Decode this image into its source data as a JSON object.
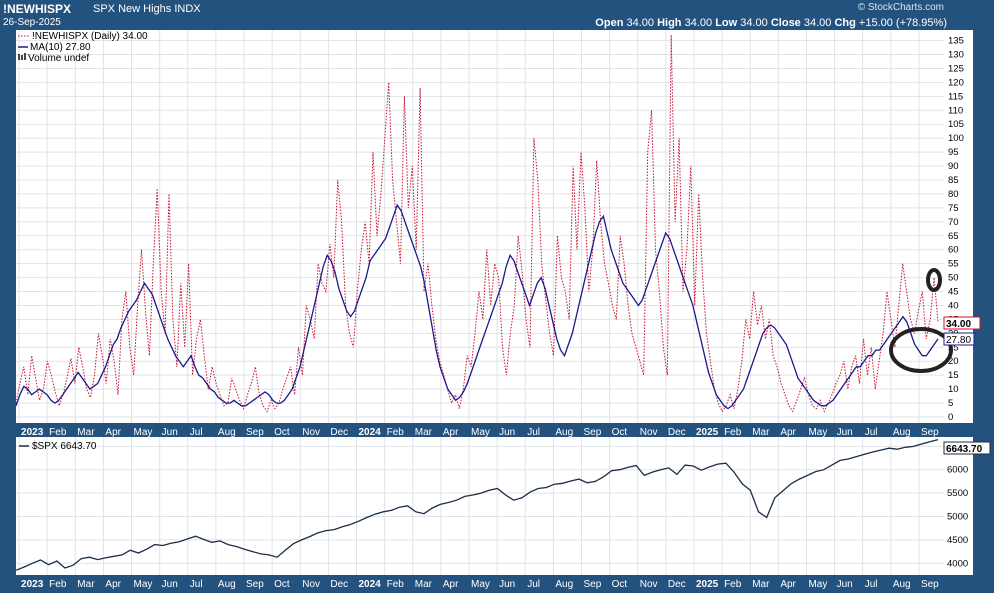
{
  "header": {
    "symbol": "!NEWHISPX",
    "description": "SPX New Highs",
    "exchange": "INDX",
    "date": "26-Sep-2025",
    "copyright": "© StockCharts.com",
    "open_label": "Open",
    "open": "34.00",
    "high_label": "High",
    "high": "34.00",
    "low_label": "Low",
    "low": "34.00",
    "close_label": "Close",
    "close": "34.00",
    "chg_label": "Chg",
    "chg": "+15.00 (+78.95%)"
  },
  "legend": {
    "series": "!NEWHISPX (Daily) 34.00",
    "ma": "MA(10) 27.80",
    "volume": "Volume undef"
  },
  "colors": {
    "frame": "#24527f",
    "series": "#c8102e",
    "ma": "#1a1a8c",
    "spx": "#1c2e45",
    "grid": "#dfe3e8"
  },
  "chart_data": [
    {
      "type": "line",
      "name": "!NEWHISPX",
      "x_ticks": [
        "2023",
        "Feb",
        "Mar",
        "Apr",
        "May",
        "Jun",
        "Jul",
        "Aug",
        "Sep",
        "Oct",
        "Nov",
        "Dec",
        "2024",
        "Feb",
        "Mar",
        "Apr",
        "May",
        "Jun",
        "Jul",
        "Aug",
        "Sep",
        "Oct",
        "Nov",
        "Dec",
        "2025",
        "Feb",
        "Mar",
        "Apr",
        "May",
        "Jun",
        "Jul",
        "Aug",
        "Sep"
      ],
      "y_ticks": [
        0,
        5,
        10,
        15,
        20,
        25,
        30,
        35,
        40,
        45,
        50,
        55,
        60,
        65,
        70,
        75,
        80,
        85,
        90,
        95,
        100,
        105,
        110,
        115,
        120,
        125,
        130,
        135
      ],
      "ylim": [
        0,
        137
      ],
      "price_labels": {
        "last": "34.00",
        "ma_last": "27.80"
      },
      "series": [
        {
          "name": "!NEWHISPX (Daily)",
          "style": "dotted",
          "values": [
            5,
            12,
            18,
            8,
            22,
            14,
            6,
            10,
            20,
            15,
            9,
            4,
            8,
            14,
            21,
            12,
            25,
            18,
            10,
            7,
            15,
            30,
            22,
            12,
            28,
            20,
            8,
            35,
            45,
            25,
            15,
            40,
            60,
            38,
            22,
            55,
            82,
            45,
            30,
            80,
            35,
            18,
            48,
            25,
            55,
            15,
            28,
            35,
            22,
            10,
            18,
            12,
            8,
            4,
            5,
            14,
            10,
            6,
            3,
            8,
            12,
            18,
            8,
            4,
            2,
            6,
            3,
            5,
            10,
            14,
            18,
            8,
            25,
            15,
            40,
            35,
            28,
            55,
            48,
            45,
            62,
            50,
            85,
            70,
            40,
            30,
            25,
            45,
            60,
            70,
            55,
            95,
            65,
            80,
            100,
            120,
            85,
            70,
            55,
            115,
            75,
            90,
            60,
            118,
            45,
            55,
            40,
            28,
            20,
            15,
            10,
            5,
            8,
            3,
            10,
            22,
            18,
            30,
            45,
            35,
            60,
            40,
            55,
            50,
            25,
            15,
            30,
            40,
            65,
            52,
            35,
            25,
            100,
            85,
            55,
            42,
            30,
            22,
            65,
            50,
            45,
            35,
            90,
            60,
            95,
            75,
            45,
            60,
            92,
            70,
            55,
            48,
            40,
            35,
            65,
            55,
            40,
            30,
            25,
            20,
            15,
            95,
            110,
            60,
            45,
            25,
            15,
            137,
            70,
            100,
            45,
            60,
            90,
            40,
            80,
            50,
            30,
            20,
            10,
            5,
            2,
            4,
            8,
            3,
            10,
            20,
            35,
            28,
            45,
            33,
            40,
            28,
            35,
            22,
            18,
            12,
            8,
            4,
            2,
            6,
            10,
            14,
            8,
            4,
            3,
            6,
            2,
            5,
            8,
            12,
            15,
            20,
            10,
            18,
            22,
            12,
            28,
            15,
            25,
            10,
            20,
            30,
            45,
            35,
            25,
            40,
            55,
            45,
            35,
            30,
            38,
            45,
            28,
            35,
            50,
            34
          ]
        },
        {
          "name": "MA(10)",
          "style": "solid",
          "values": [
            4,
            8,
            11,
            10,
            8,
            9,
            10,
            9,
            8,
            6,
            5,
            6,
            8,
            10,
            12,
            14,
            16,
            14,
            12,
            10,
            11,
            12,
            15,
            18,
            22,
            26,
            28,
            32,
            35,
            38,
            40,
            42,
            45,
            48,
            46,
            44,
            40,
            36,
            32,
            28,
            25,
            22,
            20,
            18,
            20,
            22,
            18,
            15,
            14,
            12,
            10,
            9,
            7,
            6,
            5,
            5,
            6,
            5,
            4,
            4,
            5,
            6,
            7,
            8,
            9,
            8,
            6,
            5,
            5,
            6,
            8,
            10,
            14,
            18,
            24,
            30,
            36,
            42,
            48,
            54,
            58,
            56,
            52,
            46,
            42,
            38,
            36,
            38,
            42,
            46,
            50,
            56,
            58,
            60,
            62,
            64,
            68,
            72,
            76,
            74,
            70,
            66,
            62,
            58,
            54,
            48,
            40,
            32,
            24,
            18,
            14,
            10,
            8,
            6,
            7,
            9,
            12,
            16,
            20,
            24,
            28,
            32,
            36,
            40,
            44,
            48,
            54,
            58,
            56,
            52,
            48,
            44,
            40,
            44,
            48,
            50,
            46,
            40,
            34,
            28,
            24,
            22,
            26,
            30,
            36,
            42,
            48,
            54,
            60,
            66,
            70,
            72,
            66,
            60,
            56,
            52,
            48,
            46,
            44,
            42,
            40,
            42,
            46,
            50,
            54,
            58,
            62,
            66,
            64,
            60,
            56,
            52,
            48,
            44,
            40,
            34,
            28,
            22,
            16,
            12,
            8,
            6,
            4,
            3,
            4,
            6,
            8,
            10,
            14,
            18,
            22,
            26,
            30,
            32,
            33,
            32,
            30,
            28,
            26,
            22,
            18,
            14,
            12,
            10,
            8,
            6,
            5,
            4,
            4,
            5,
            6,
            8,
            10,
            12,
            14,
            16,
            18,
            18,
            20,
            22,
            22,
            24,
            24,
            26,
            28,
            30,
            32,
            34,
            36,
            34,
            30,
            26,
            24,
            22,
            22,
            24,
            26,
            28
          ]
        }
      ]
    },
    {
      "type": "line",
      "name": "$SPX",
      "legend": "$SPX 6643.70",
      "x_ticks": [
        "2023",
        "Feb",
        "Mar",
        "Apr",
        "May",
        "Jun",
        "Jul",
        "Aug",
        "Sep",
        "Oct",
        "Nov",
        "Dec",
        "2024",
        "Feb",
        "Mar",
        "Apr",
        "May",
        "Jun",
        "Jul",
        "Aug",
        "Sep",
        "Oct",
        "Nov",
        "Dec",
        "2025",
        "Feb",
        "Mar",
        "Apr",
        "May",
        "Jun",
        "Jul",
        "Aug",
        "Sep"
      ],
      "y_ticks": [
        4000,
        4500,
        5000,
        5500,
        6000,
        6500
      ],
      "ylim": [
        3750,
        6700
      ],
      "price_labels": {
        "last": "6643.70"
      },
      "values": [
        3850,
        3920,
        4000,
        4070,
        3970,
        4050,
        3900,
        3960,
        4100,
        4130,
        4080,
        4120,
        4150,
        4180,
        4280,
        4220,
        4300,
        4400,
        4380,
        4430,
        4460,
        4520,
        4580,
        4510,
        4450,
        4480,
        4400,
        4360,
        4300,
        4250,
        4200,
        4180,
        4130,
        4280,
        4420,
        4500,
        4570,
        4650,
        4700,
        4720,
        4780,
        4830,
        4900,
        4980,
        5050,
        5100,
        5130,
        5200,
        5230,
        5100,
        5060,
        5180,
        5260,
        5300,
        5350,
        5430,
        5460,
        5500,
        5560,
        5600,
        5460,
        5350,
        5400,
        5520,
        5600,
        5620,
        5690,
        5710,
        5760,
        5800,
        5720,
        5750,
        5850,
        5980,
        6000,
        6050,
        6090,
        5880,
        5950,
        6000,
        6040,
        5900,
        6100,
        6080,
        5990,
        6060,
        6120,
        6140,
        5950,
        5700,
        5560,
        5100,
        4980,
        5400,
        5550,
        5700,
        5800,
        5880,
        5960,
        6000,
        6100,
        6200,
        6230,
        6280,
        6330,
        6380,
        6420,
        6460,
        6440,
        6480,
        6500,
        6550,
        6600,
        6643.7
      ]
    }
  ]
}
